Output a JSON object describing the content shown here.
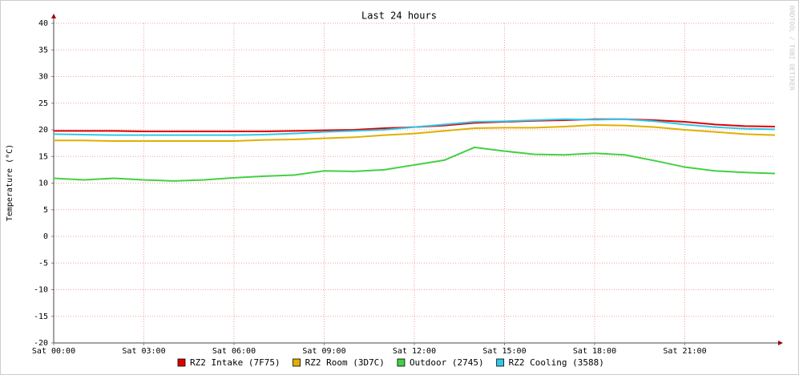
{
  "chart_data": {
    "type": "line",
    "title": "Last 24 hours",
    "y_label": "Temperature (°C)",
    "watermark": "RRDTOOL / TOBI OETIKER",
    "x": [
      0,
      1,
      2,
      3,
      4,
      5,
      6,
      7,
      8,
      9,
      10,
      11,
      12,
      13,
      14,
      15,
      16,
      17,
      18,
      19,
      20,
      21,
      22,
      23,
      24
    ],
    "xlim": [
      0,
      24
    ],
    "xticks": [
      {
        "value": 0,
        "label": "Sat 00:00"
      },
      {
        "value": 3,
        "label": "Sat 03:00"
      },
      {
        "value": 6,
        "label": "Sat 06:00"
      },
      {
        "value": 9,
        "label": "Sat 09:00"
      },
      {
        "value": 12,
        "label": "Sat 12:00"
      },
      {
        "value": 15,
        "label": "Sat 15:00"
      },
      {
        "value": 18,
        "label": "Sat 18:00"
      },
      {
        "value": 21,
        "label": "Sat 21:00"
      }
    ],
    "ylim": [
      -20,
      40
    ],
    "yticks": [
      -20,
      -15,
      -10,
      -5,
      0,
      5,
      10,
      15,
      20,
      25,
      30,
      35,
      40
    ],
    "grid": true,
    "series": [
      {
        "name": "RZ2 Intake (7F75)",
        "color": "#e00000",
        "values": [
          19.8,
          19.8,
          19.8,
          19.7,
          19.7,
          19.7,
          19.7,
          19.7,
          19.8,
          19.9,
          20.0,
          20.3,
          20.5,
          20.8,
          21.3,
          21.5,
          21.7,
          21.8,
          22.0,
          22.0,
          21.8,
          21.5,
          21.0,
          20.7,
          20.6
        ]
      },
      {
        "name": "RZ2 Room (3D7C)",
        "color": "#e0b000",
        "values": [
          18.0,
          18.0,
          17.9,
          17.9,
          17.9,
          17.9,
          17.9,
          18.1,
          18.2,
          18.4,
          18.6,
          19.0,
          19.3,
          19.8,
          20.3,
          20.4,
          20.4,
          20.6,
          20.9,
          20.8,
          20.5,
          20.0,
          19.6,
          19.2,
          19.0
        ]
      },
      {
        "name": "Outdoor (2745)",
        "color": "#44d044",
        "values": [
          10.9,
          10.6,
          10.9,
          10.6,
          10.4,
          10.6,
          11.0,
          11.3,
          11.5,
          12.3,
          12.2,
          12.5,
          13.4,
          14.3,
          16.7,
          16.0,
          15.4,
          15.3,
          15.6,
          15.3,
          14.2,
          13.0,
          12.3,
          12.0,
          11.8
        ]
      },
      {
        "name": "RZ2 Cooling (3588)",
        "color": "#30c8e8",
        "values": [
          19.2,
          19.1,
          19.0,
          19.0,
          19.0,
          19.0,
          19.0,
          19.1,
          19.3,
          19.6,
          19.8,
          20.0,
          20.5,
          21.0,
          21.5,
          21.6,
          21.8,
          22.0,
          21.9,
          22.0,
          21.6,
          21.0,
          20.5,
          20.2,
          20.1
        ]
      }
    ]
  }
}
